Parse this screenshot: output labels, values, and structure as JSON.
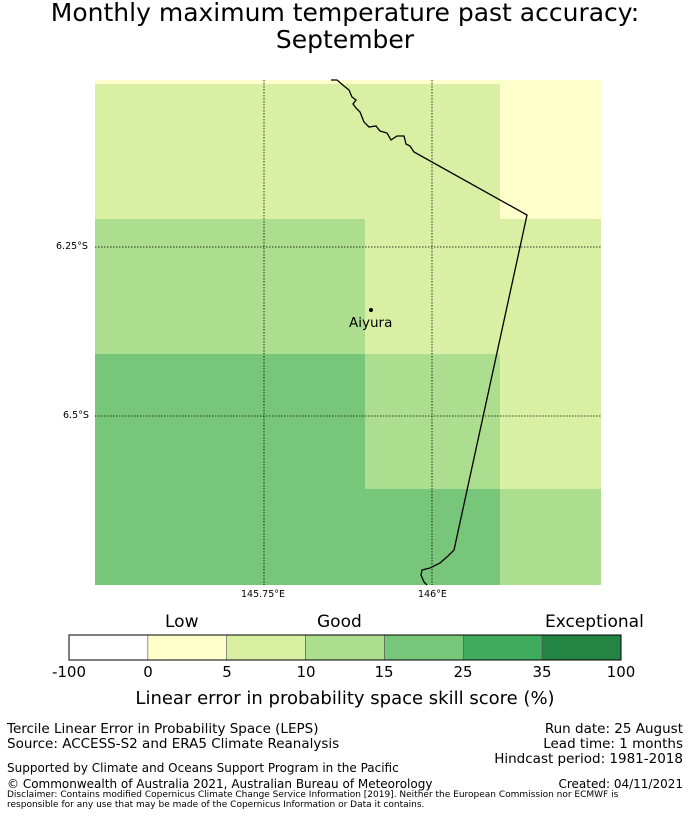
{
  "title": {
    "line1": "Monthly maximum temperature past accuracy:",
    "line2": "September"
  },
  "map": {
    "lat_labels": [
      "6.25°S",
      "6.5°S"
    ],
    "lon_labels": [
      "145.75°E",
      "146°E"
    ],
    "place": "Aiyura",
    "cells": [
      {
        "row": 0,
        "col": 0,
        "class": "5-10"
      },
      {
        "row": 0,
        "col": 1,
        "class": "5-10"
      },
      {
        "row": 0,
        "col": 2,
        "class": "5-10"
      },
      {
        "row": 0,
        "col": 3,
        "class": "0-5"
      },
      {
        "row": 1,
        "col": 0,
        "class": "10-15"
      },
      {
        "row": 1,
        "col": 1,
        "class": "10-15"
      },
      {
        "row": 1,
        "col": 2,
        "class": "5-10"
      },
      {
        "row": 1,
        "col": 3,
        "class": "5-10"
      },
      {
        "row": 2,
        "col": 0,
        "class": "15-25"
      },
      {
        "row": 2,
        "col": 1,
        "class": "15-25"
      },
      {
        "row": 2,
        "col": 2,
        "class": "10-15"
      },
      {
        "row": 2,
        "col": 3,
        "class": "5-10"
      },
      {
        "row": 3,
        "col": 0,
        "class": "15-25"
      },
      {
        "row": 3,
        "col": 1,
        "class": "15-25"
      },
      {
        "row": 3,
        "col": 2,
        "class": "15-25"
      },
      {
        "row": 3,
        "col": 3,
        "class": "10-15"
      }
    ]
  },
  "colorbar": {
    "categories": [
      "Low",
      "Good",
      "Exceptional"
    ],
    "ticks": [
      "-100",
      "0",
      "5",
      "10",
      "15",
      "25",
      "35",
      "100"
    ],
    "colors": [
      "#ffffff",
      "#ffffcc",
      "#d9f0a3",
      "#addd8e",
      "#78c679",
      "#41ab5d",
      "#238443"
    ],
    "label": "Linear error in probability space skill score (%)"
  },
  "info": {
    "product": "Tercile Linear Error in Probability Space (LEPS)",
    "source": "Source: ACCESS-S2 and ERA5 Climate Reanalysis",
    "support": "Supported by Climate and Oceans Support Program in the Pacific",
    "copyright": "© Commonwealth of Australia 2021, Australian Bureau of Meteorology",
    "disclaimer": "Disclaimer: Contains modified Copernicus Climate Change Service Information [2019]. Neither the European Commission nor ECMWF is responsible for any use that may be made of the Copernicus Information or Data it contains.",
    "run_date": "Run date: 25 August",
    "lead_time": "Lead time: 1 months",
    "hindcast": "Hindcast period: 1981-2018",
    "created": "Created: 04/11/2021"
  }
}
